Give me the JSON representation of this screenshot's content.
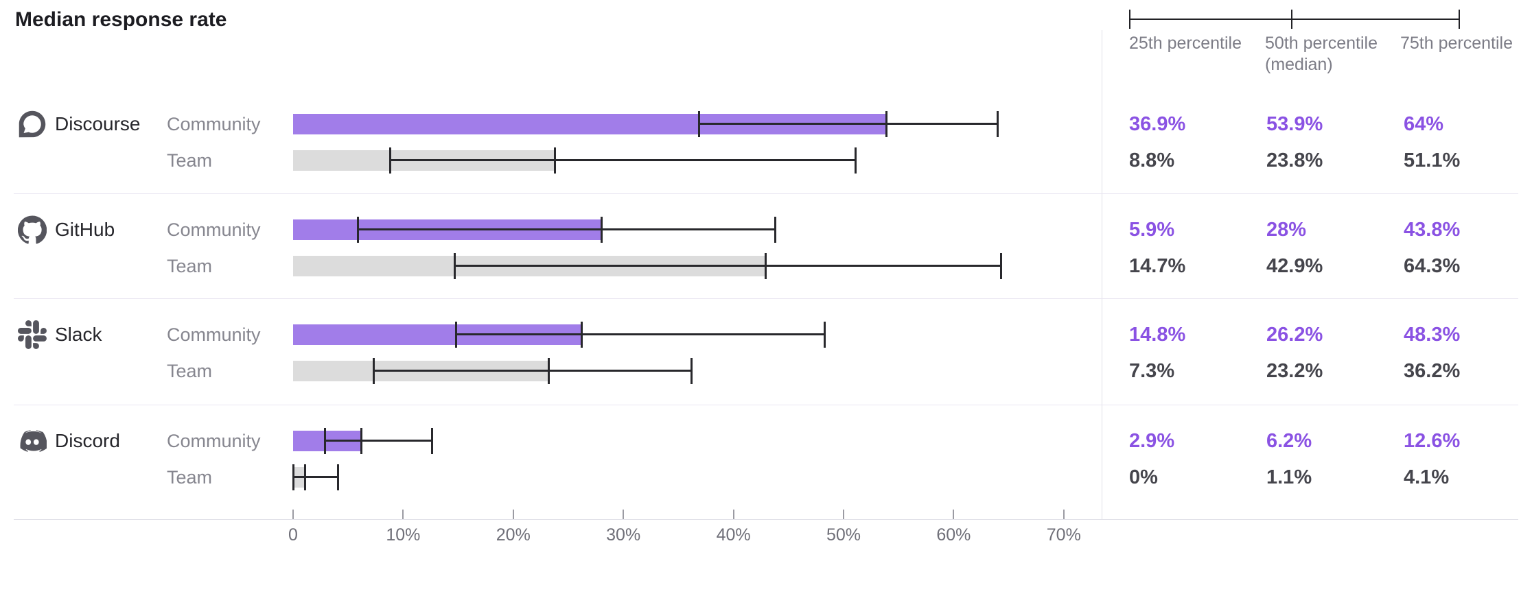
{
  "title": "Median response rate",
  "legend": {
    "p25_label": "25th percentile",
    "p50_label": "50th percentile (median)",
    "p75_label": "75th percentile"
  },
  "colors": {
    "community_bar": "#a17de9",
    "team_bar": "#dcdcdc",
    "community_text": "#8a52e3",
    "team_text": "#45454c",
    "whisker": "#28282c"
  },
  "axis": {
    "ticks": [
      "0",
      "10%",
      "20%",
      "30%",
      "40%",
      "50%",
      "60%",
      "70%"
    ]
  },
  "platforms": [
    {
      "name": "Discourse",
      "icon": "discourse-icon",
      "rows": [
        {
          "label": "Community",
          "p25": 36.9,
          "p50": 53.9,
          "p75": 64,
          "p25_text": "36.9%",
          "p50_text": "53.9%",
          "p75_text": "64%"
        },
        {
          "label": "Team",
          "p25": 8.8,
          "p50": 23.8,
          "p75": 51.1,
          "p25_text": "8.8%",
          "p50_text": "23.8%",
          "p75_text": "51.1%"
        }
      ]
    },
    {
      "name": "GitHub",
      "icon": "github-icon",
      "rows": [
        {
          "label": "Community",
          "p25": 5.9,
          "p50": 28,
          "p75": 43.8,
          "p25_text": "5.9%",
          "p50_text": "28%",
          "p75_text": "43.8%"
        },
        {
          "label": "Team",
          "p25": 14.7,
          "p50": 42.9,
          "p75": 64.3,
          "p25_text": "14.7%",
          "p50_text": "42.9%",
          "p75_text": "64.3%"
        }
      ]
    },
    {
      "name": "Slack",
      "icon": "slack-icon",
      "rows": [
        {
          "label": "Community",
          "p25": 14.8,
          "p50": 26.2,
          "p75": 48.3,
          "p25_text": "14.8%",
          "p50_text": "26.2%",
          "p75_text": "48.3%"
        },
        {
          "label": "Team",
          "p25": 7.3,
          "p50": 23.2,
          "p75": 36.2,
          "p25_text": "7.3%",
          "p50_text": "23.2%",
          "p75_text": "36.2%"
        }
      ]
    },
    {
      "name": "Discord",
      "icon": "discord-icon",
      "rows": [
        {
          "label": "Community",
          "p25": 2.9,
          "p50": 6.2,
          "p75": 12.6,
          "p25_text": "2.9%",
          "p50_text": "6.2%",
          "p75_text": "12.6%"
        },
        {
          "label": "Team",
          "p25": 0,
          "p50": 1.1,
          "p75": 4.1,
          "p25_text": "0%",
          "p50_text": "1.1%",
          "p75_text": "4.1%"
        }
      ]
    }
  ],
  "chart_data": {
    "type": "bar",
    "orientation": "horizontal",
    "title": "Median response rate",
    "categories": [
      "Discourse",
      "GitHub",
      "Slack",
      "Discord"
    ],
    "series": [
      {
        "name": "Community",
        "p25": [
          36.9,
          5.9,
          14.8,
          2.9
        ],
        "p50": [
          53.9,
          28,
          26.2,
          6.2
        ],
        "p75": [
          64,
          43.8,
          48.3,
          12.6
        ]
      },
      {
        "name": "Team",
        "p25": [
          8.8,
          14.7,
          7.3,
          0
        ],
        "p50": [
          23.8,
          42.9,
          23.2,
          1.1
        ],
        "p75": [
          51.1,
          64.3,
          36.2,
          4.1
        ]
      }
    ],
    "bar_represents": "50th percentile (median) response rate",
    "whisker_represents": "25th to 75th percentile range",
    "unit": "%",
    "xlabel": "",
    "ylabel": "",
    "x_axis_ticks": [
      "0",
      "10%",
      "20%",
      "30%",
      "40%",
      "50%",
      "60%",
      "70%"
    ],
    "xlim": [
      0,
      72
    ],
    "grid": false,
    "legend_position": "top-right"
  }
}
